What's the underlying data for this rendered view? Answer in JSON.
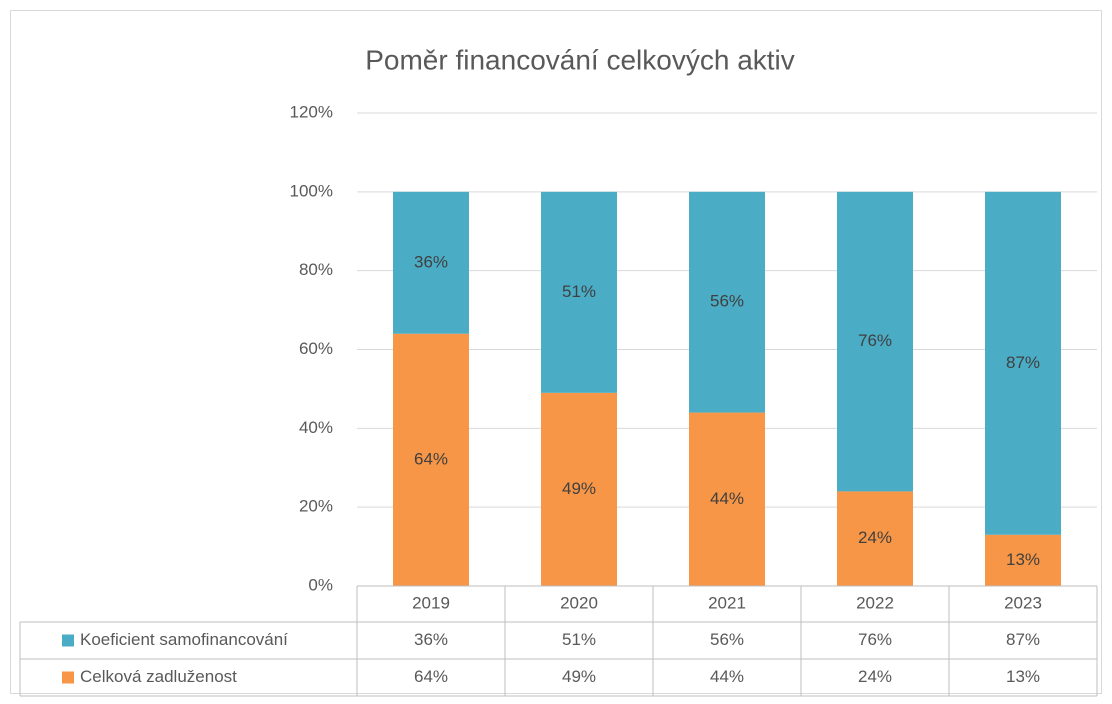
{
  "chart_data": {
    "type": "bar",
    "stacked": true,
    "title": "Poměr financování celkových aktiv",
    "categories": [
      "2019",
      "2020",
      "2021",
      "2022",
      "2023"
    ],
    "series": [
      {
        "name": "Koeficient samofinancování",
        "color": "#4bacc6",
        "values": [
          36,
          51,
          56,
          76,
          87
        ],
        "value_labels": [
          "36%",
          "51%",
          "56%",
          "76%",
          "87%"
        ]
      },
      {
        "name": "Celková zadluženost",
        "color": "#f79646",
        "values": [
          64,
          49,
          44,
          24,
          13
        ],
        "value_labels": [
          "64%",
          "49%",
          "44%",
          "24%",
          "13%"
        ]
      }
    ],
    "ylim": [
      0,
      120
    ],
    "yticks": [
      {
        "value": 0,
        "label": "0%"
      },
      {
        "value": 20,
        "label": "20%"
      },
      {
        "value": 40,
        "label": "40%"
      },
      {
        "value": 60,
        "label": "60%"
      },
      {
        "value": 80,
        "label": "80%"
      },
      {
        "value": 100,
        "label": "100%"
      },
      {
        "value": 120,
        "label": "120%"
      }
    ],
    "grid": true,
    "data_table": true
  }
}
